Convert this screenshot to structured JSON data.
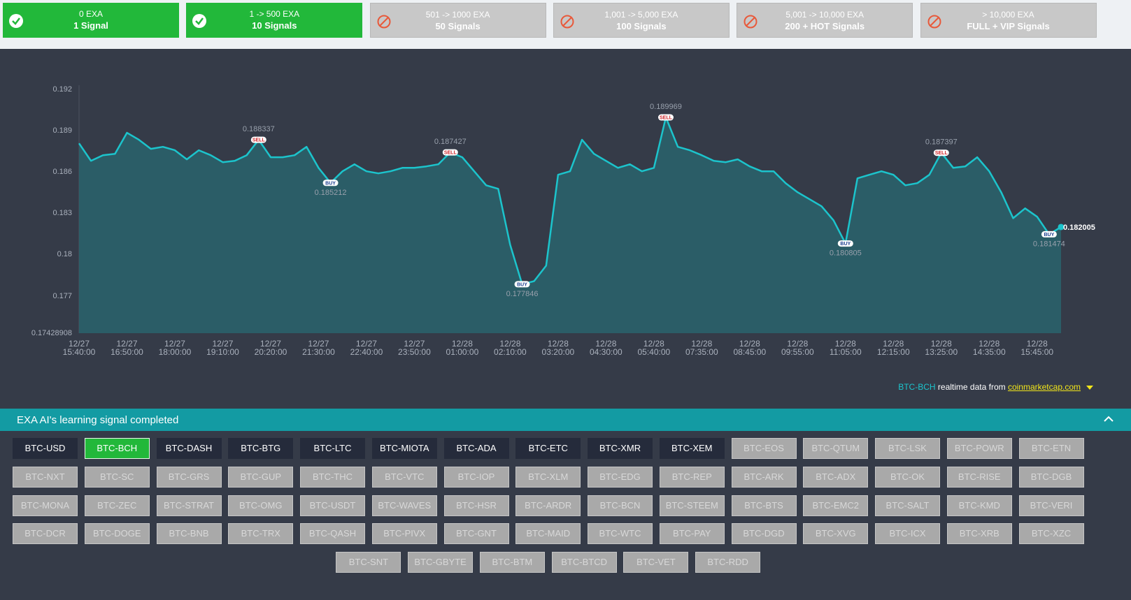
{
  "tiers": [
    {
      "amount": "0 EXA",
      "signals": "1 Signal",
      "unlocked": true
    },
    {
      "amount": "1 -> 500 EXA",
      "signals": "10 Signals",
      "unlocked": true
    },
    {
      "amount": "501 -> 1000 EXA",
      "signals": "50 Signals",
      "unlocked": false
    },
    {
      "amount": "1,001 -> 5,000 EXA",
      "signals": "100 Signals",
      "unlocked": false
    },
    {
      "amount": "5,001 -> 10,000 EXA",
      "signals": "200 + HOT Signals",
      "unlocked": false
    },
    {
      "amount": "> 10,000 EXA",
      "signals": "FULL + VIP Signals",
      "unlocked": false
    }
  ],
  "chart_data": {
    "type": "line",
    "categories": [
      "12/27 15:40:00",
      null,
      null,
      null,
      "12/27 16:50:00",
      null,
      null,
      null,
      "12/27 18:00:00",
      null,
      null,
      null,
      "12/27 19:10:00",
      null,
      null,
      null,
      "12/27 20:20:00",
      null,
      null,
      null,
      "12/27 21:30:00",
      null,
      null,
      null,
      "12/27 22:40:00",
      null,
      null,
      null,
      "12/27 23:50:00",
      null,
      null,
      null,
      "12/28 01:00:00",
      null,
      null,
      null,
      "12/28 02:10:00",
      null,
      null,
      null,
      "12/28 03:20:00",
      null,
      null,
      null,
      "12/28 04:30:00",
      null,
      null,
      null,
      "12/28 05:40:00",
      null,
      null,
      null,
      "12/28 07:35:00",
      null,
      null,
      null,
      "12/28 08:45:00",
      null,
      null,
      null,
      "12/28 09:55:00",
      null,
      null,
      null,
      "12/28 11:05:00",
      null,
      null,
      null,
      "12/28 12:15:00",
      null,
      null,
      null,
      "12/28 13:25:00",
      null,
      null,
      null,
      "12/28 14:35:00",
      null,
      null,
      null,
      "12/28 15:45:00",
      null,
      null
    ],
    "series": [
      {
        "name": "BTC-BCH",
        "color": "#1cc4cc",
        "area_color": "#2b5f69",
        "values": [
          0.18808,
          0.18681,
          0.18722,
          0.18732,
          0.18885,
          0.18834,
          0.18768,
          0.18783,
          0.18758,
          0.18692,
          0.18758,
          0.18722,
          0.18671,
          0.18681,
          0.18722,
          0.188337,
          0.18707,
          0.18707,
          0.18722,
          0.18783,
          0.1863,
          0.185212,
          0.18605,
          0.18656,
          0.18605,
          0.1859,
          0.18605,
          0.1863,
          0.1863,
          0.18641,
          0.18656,
          0.187427,
          0.18707,
          0.18605,
          0.18503,
          0.18478,
          0.18071,
          0.177846,
          0.17807,
          0.17919,
          0.1858,
          0.18605,
          0.18834,
          0.18732,
          0.18681,
          0.1863,
          0.18656,
          0.18605,
          0.1863,
          0.189969,
          0.18783,
          0.18758,
          0.18722,
          0.18681,
          0.18671,
          0.18692,
          0.18641,
          0.18605,
          0.18605,
          0.18519,
          0.18453,
          0.18402,
          0.18351,
          0.18249,
          0.180805,
          0.18554,
          0.1858,
          0.18605,
          0.1858,
          0.18503,
          0.18519,
          0.1858,
          0.187397,
          0.1863,
          0.18641,
          0.18707,
          0.18605,
          0.18453,
          0.18264,
          0.18336,
          0.18275,
          0.181474,
          0.182005
        ]
      }
    ],
    "signals": [
      null,
      null,
      null,
      null,
      null,
      null,
      null,
      null,
      null,
      null,
      null,
      null,
      null,
      null,
      null,
      "SELL",
      null,
      null,
      null,
      null,
      null,
      "BUY",
      null,
      null,
      null,
      null,
      null,
      null,
      null,
      null,
      null,
      "SELL",
      null,
      null,
      null,
      null,
      null,
      "BUY",
      null,
      null,
      null,
      null,
      null,
      null,
      null,
      null,
      null,
      null,
      null,
      "SELL",
      null,
      null,
      null,
      null,
      null,
      null,
      null,
      null,
      null,
      null,
      null,
      null,
      null,
      null,
      "BUY",
      null,
      null,
      null,
      null,
      null,
      null,
      null,
      "SELL",
      null,
      null,
      null,
      null,
      null,
      null,
      null,
      null,
      "BUY",
      null
    ],
    "ylim": [
      0.17428908,
      0.192
    ],
    "yticks": [
      0.17428908,
      0.177,
      0.18,
      0.183,
      0.186,
      0.189,
      0.192
    ]
  },
  "source": {
    "pair": "BTC-BCH",
    "text": "realtime data from",
    "link": "coinmarketcap.com"
  },
  "panel": {
    "title": "EXA AI's learning signal completed"
  },
  "pairs": [
    {
      "label": "BTC-USD",
      "state": "available"
    },
    {
      "label": "BTC-BCH",
      "state": "selected"
    },
    {
      "label": "BTC-DASH",
      "state": "available"
    },
    {
      "label": "BTC-BTG",
      "state": "available"
    },
    {
      "label": "BTC-LTC",
      "state": "available"
    },
    {
      "label": "BTC-MIOTA",
      "state": "available"
    },
    {
      "label": "BTC-ADA",
      "state": "available"
    },
    {
      "label": "BTC-ETC",
      "state": "available"
    },
    {
      "label": "BTC-XMR",
      "state": "available"
    },
    {
      "label": "BTC-XEM",
      "state": "available"
    },
    {
      "label": "BTC-EOS",
      "state": "locked"
    },
    {
      "label": "BTC-QTUM",
      "state": "locked"
    },
    {
      "label": "BTC-LSK",
      "state": "locked"
    },
    {
      "label": "BTC-POWR",
      "state": "locked"
    },
    {
      "label": "BTC-ETN",
      "state": "locked"
    },
    {
      "label": "BTC-NXT",
      "state": "locked"
    },
    {
      "label": "BTC-SC",
      "state": "locked"
    },
    {
      "label": "BTC-GRS",
      "state": "locked"
    },
    {
      "label": "BTC-GUP",
      "state": "locked"
    },
    {
      "label": "BTC-THC",
      "state": "locked"
    },
    {
      "label": "BTC-VTC",
      "state": "locked"
    },
    {
      "label": "BTC-IOP",
      "state": "locked"
    },
    {
      "label": "BTC-XLM",
      "state": "locked"
    },
    {
      "label": "BTC-EDG",
      "state": "locked"
    },
    {
      "label": "BTC-REP",
      "state": "locked"
    },
    {
      "label": "BTC-ARK",
      "state": "locked"
    },
    {
      "label": "BTC-ADX",
      "state": "locked"
    },
    {
      "label": "BTC-OK",
      "state": "locked"
    },
    {
      "label": "BTC-RISE",
      "state": "locked"
    },
    {
      "label": "BTC-DGB",
      "state": "locked"
    },
    {
      "label": "BTC-MONA",
      "state": "locked"
    },
    {
      "label": "BTC-ZEC",
      "state": "locked"
    },
    {
      "label": "BTC-STRAT",
      "state": "locked"
    },
    {
      "label": "BTC-OMG",
      "state": "locked"
    },
    {
      "label": "BTC-USDT",
      "state": "locked"
    },
    {
      "label": "BTC-WAVES",
      "state": "locked"
    },
    {
      "label": "BTC-HSR",
      "state": "locked"
    },
    {
      "label": "BTC-ARDR",
      "state": "locked"
    },
    {
      "label": "BTC-BCN",
      "state": "locked"
    },
    {
      "label": "BTC-STEEM",
      "state": "locked"
    },
    {
      "label": "BTC-BTS",
      "state": "locked"
    },
    {
      "label": "BTC-EMC2",
      "state": "locked"
    },
    {
      "label": "BTC-SALT",
      "state": "locked"
    },
    {
      "label": "BTC-KMD",
      "state": "locked"
    },
    {
      "label": "BTC-VERI",
      "state": "locked"
    },
    {
      "label": "BTC-DCR",
      "state": "locked"
    },
    {
      "label": "BTC-DOGE",
      "state": "locked"
    },
    {
      "label": "BTC-BNB",
      "state": "locked"
    },
    {
      "label": "BTC-TRX",
      "state": "locked"
    },
    {
      "label": "BTC-QASH",
      "state": "locked"
    },
    {
      "label": "BTC-PIVX",
      "state": "locked"
    },
    {
      "label": "BTC-GNT",
      "state": "locked"
    },
    {
      "label": "BTC-MAID",
      "state": "locked"
    },
    {
      "label": "BTC-WTC",
      "state": "locked"
    },
    {
      "label": "BTC-PAY",
      "state": "locked"
    },
    {
      "label": "BTC-DGD",
      "state": "locked"
    },
    {
      "label": "BTC-XVG",
      "state": "locked"
    },
    {
      "label": "BTC-ICX",
      "state": "locked"
    },
    {
      "label": "BTC-XRB",
      "state": "locked"
    },
    {
      "label": "BTC-XZC",
      "state": "locked"
    },
    {
      "label": "BTC-SNT",
      "state": "locked"
    },
    {
      "label": "BTC-GBYTE",
      "state": "locked"
    },
    {
      "label": "BTC-BTM",
      "state": "locked"
    },
    {
      "label": "BTC-BTCD",
      "state": "locked"
    },
    {
      "label": "BTC-VET",
      "state": "locked"
    },
    {
      "label": "BTC-RDD",
      "state": "locked"
    }
  ]
}
